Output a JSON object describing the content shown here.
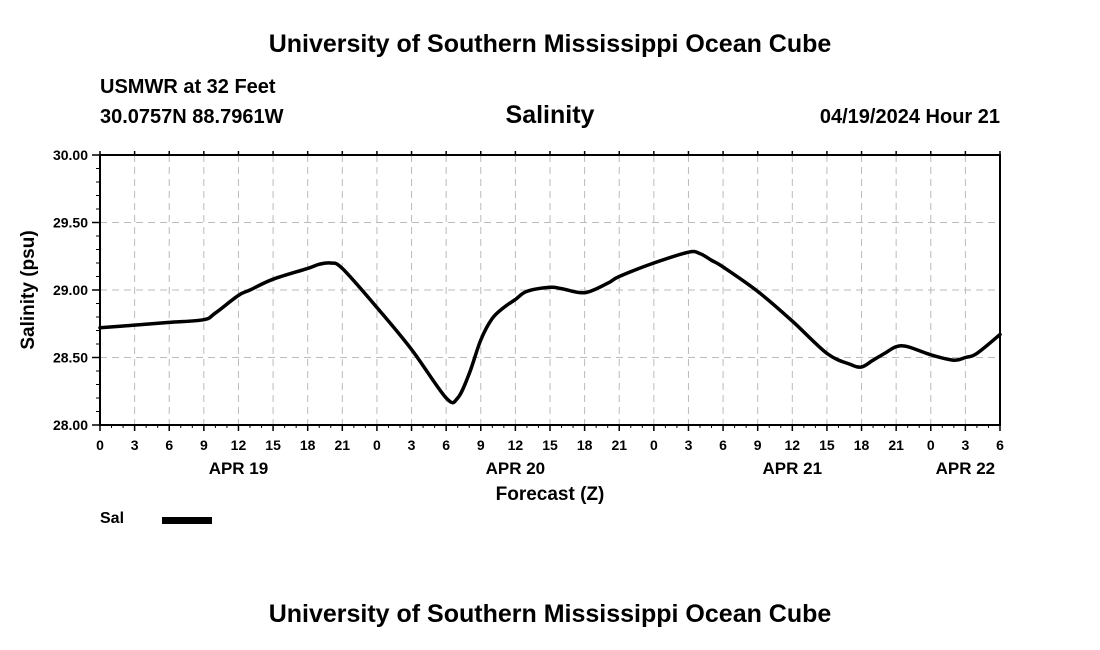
{
  "header": {
    "title": "University of Southern Mississippi Ocean Cube",
    "station": "USMWR at 32 Feet",
    "coords": "30.0757N  88.7961W",
    "chart_title": "Salinity",
    "timestamp": "04/19/2024 Hour 21"
  },
  "footer": {
    "title": "University of Southern Mississippi Ocean Cube"
  },
  "legend": {
    "label": "Sal"
  },
  "chart_data": {
    "type": "line",
    "title": "Salinity",
    "xlabel": "Forecast (Z)",
    "ylabel": "Salinity (psu)",
    "ylim": [
      28.0,
      30.0
    ],
    "xlim": [
      0,
      78
    ],
    "grid": true,
    "y_ticks": [
      "28.00",
      "28.50",
      "29.00",
      "29.50",
      "30.00"
    ],
    "y_tick_values": [
      28.0,
      28.5,
      29.0,
      29.5,
      30.0
    ],
    "x_ticks": [
      {
        "h": 0,
        "label": "0"
      },
      {
        "h": 3,
        "label": "3"
      },
      {
        "h": 6,
        "label": "6"
      },
      {
        "h": 9,
        "label": "9"
      },
      {
        "h": 12,
        "label": "12"
      },
      {
        "h": 15,
        "label": "15"
      },
      {
        "h": 18,
        "label": "18"
      },
      {
        "h": 21,
        "label": "21"
      },
      {
        "h": 24,
        "label": "0"
      },
      {
        "h": 27,
        "label": "3"
      },
      {
        "h": 30,
        "label": "6"
      },
      {
        "h": 33,
        "label": "9"
      },
      {
        "h": 36,
        "label": "12"
      },
      {
        "h": 39,
        "label": "15"
      },
      {
        "h": 42,
        "label": "18"
      },
      {
        "h": 45,
        "label": "21"
      },
      {
        "h": 48,
        "label": "0"
      },
      {
        "h": 51,
        "label": "3"
      },
      {
        "h": 54,
        "label": "6"
      },
      {
        "h": 57,
        "label": "9"
      },
      {
        "h": 60,
        "label": "12"
      },
      {
        "h": 63,
        "label": "15"
      },
      {
        "h": 66,
        "label": "18"
      },
      {
        "h": 69,
        "label": "21"
      },
      {
        "h": 72,
        "label": "0"
      },
      {
        "h": 75,
        "label": "3"
      },
      {
        "h": 78,
        "label": "6"
      }
    ],
    "date_labels": [
      {
        "h": 12,
        "label": "APR 19"
      },
      {
        "h": 36,
        "label": "APR 20"
      },
      {
        "h": 60,
        "label": "APR 21"
      },
      {
        "h": 75,
        "label": "APR 22"
      }
    ],
    "series": [
      {
        "name": "Sal",
        "color": "#000000",
        "x": [
          0,
          3,
          6,
          9,
          10,
          12,
          13,
          15,
          18,
          19,
          20,
          21,
          24,
          27,
          30,
          31,
          32,
          33,
          34,
          35,
          36,
          37,
          39,
          40,
          42,
          44,
          45,
          48,
          51,
          52,
          53,
          54,
          57,
          60,
          63,
          65,
          66,
          67,
          68,
          69,
          70,
          72,
          74,
          75,
          76,
          78
        ],
        "values": [
          28.72,
          28.74,
          28.76,
          28.78,
          28.83,
          28.96,
          29.0,
          29.08,
          29.16,
          29.19,
          29.2,
          29.16,
          28.87,
          28.56,
          28.2,
          28.2,
          28.38,
          28.63,
          28.79,
          28.87,
          28.93,
          28.99,
          29.02,
          29.01,
          28.98,
          29.05,
          29.1,
          29.2,
          29.28,
          29.27,
          29.22,
          29.17,
          28.99,
          28.77,
          28.53,
          28.45,
          28.43,
          28.48,
          28.53,
          28.58,
          28.58,
          28.52,
          28.48,
          28.5,
          28.53,
          28.67
        ]
      }
    ]
  }
}
